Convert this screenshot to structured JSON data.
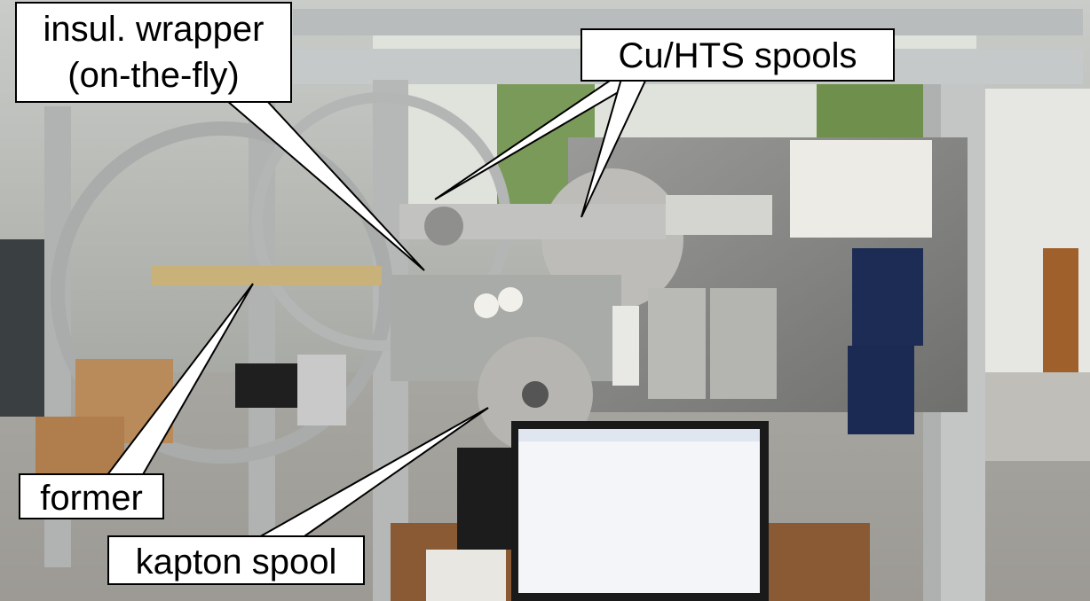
{
  "labels": {
    "insul_wrapper": {
      "lines": [
        "insul. wrapper",
        "(on-the-fly)"
      ]
    },
    "cu_hts_spools": {
      "text": "Cu/HTS spools"
    },
    "former": {
      "text": "former"
    },
    "kapton_spool": {
      "text": "kapton spool"
    }
  }
}
